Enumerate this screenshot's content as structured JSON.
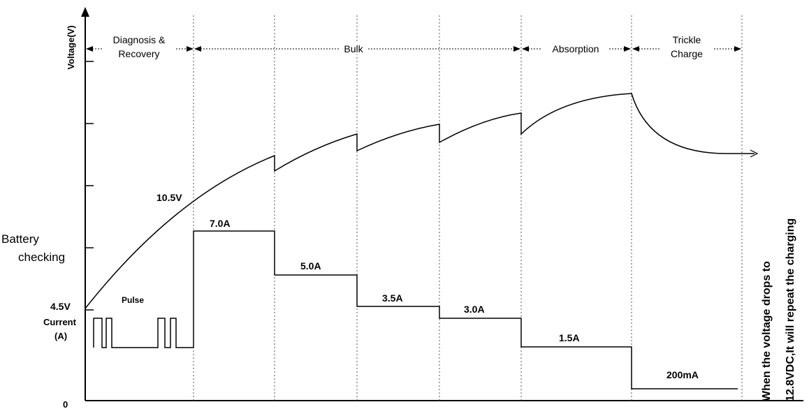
{
  "axes": {
    "y_label": "Voltage(V)",
    "origin_label": "0"
  },
  "phases": [
    {
      "id": "diagnosis",
      "label_line1": "Diagnosis &",
      "label_line2": "Recovery"
    },
    {
      "id": "bulk",
      "label_line1": "Bulk",
      "label_line2": ""
    },
    {
      "id": "absorption",
      "label_line1": "Absorption",
      "label_line2": ""
    },
    {
      "id": "trickle",
      "label_line1": "Trickle",
      "label_line2": "Charge"
    }
  ],
  "side_labels": {
    "battery_checking_line1": "Battery",
    "battery_checking_line2": "checking",
    "start_voltage": "4.5V",
    "current_line1": "Current",
    "current_line2": "(A)",
    "pulse": "Pulse",
    "mid_voltage": "10.5V"
  },
  "current_steps": [
    {
      "id": "bulk-1",
      "label": "7.0A"
    },
    {
      "id": "bulk-2",
      "label": "5.0A"
    },
    {
      "id": "bulk-3",
      "label": "3.5A"
    },
    {
      "id": "bulk-4",
      "label": "3.0A"
    },
    {
      "id": "absorption",
      "label": "1.5A"
    },
    {
      "id": "trickle",
      "label": "200mA"
    }
  ],
  "note": {
    "line1": "When the voltage drops to",
    "line2": "12.8VDC,It will repeat the charging"
  }
}
